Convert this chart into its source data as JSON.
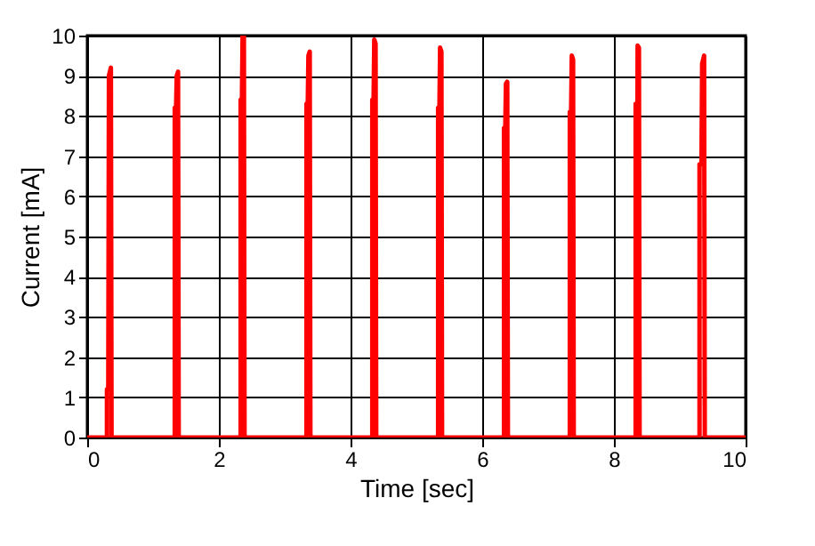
{
  "chart_data": {
    "type": "line",
    "xlabel": "Time [sec]",
    "ylabel": "Current [mA]",
    "xlim": [
      0,
      10
    ],
    "ylim": [
      0,
      10
    ],
    "xticks": [
      0,
      2,
      4,
      6,
      8,
      10
    ],
    "yticks": [
      0,
      1,
      2,
      3,
      4,
      5,
      6,
      7,
      8,
      9,
      10
    ],
    "grid": true,
    "marker": "none",
    "line_style": "solid",
    "series": [
      {
        "color": "#ff0000",
        "x": [
          0,
          0.3,
          0.3,
          0.32,
          0.33,
          0.36,
          0.37,
          1.33,
          1.33,
          1.35,
          1.36,
          1.38,
          1.39,
          2.33,
          2.33,
          2.35,
          2.36,
          2.38,
          2.39,
          3.33,
          3.33,
          3.35,
          3.36,
          3.38,
          3.39,
          4.33,
          4.33,
          4.35,
          4.36,
          4.38,
          4.39,
          5.33,
          5.33,
          5.35,
          5.36,
          5.38,
          5.39,
          6.33,
          6.33,
          6.35,
          6.36,
          6.38,
          6.39,
          7.33,
          7.33,
          7.35,
          7.36,
          7.38,
          7.39,
          8.33,
          8.33,
          8.35,
          8.36,
          8.38,
          8.39,
          9.3,
          9.3,
          9.33,
          9.34,
          9.37,
          9.38,
          10
        ],
        "values": [
          0,
          0,
          1.2,
          1.2,
          9.0,
          9.2,
          0,
          0,
          8.2,
          8.2,
          9.0,
          9.1,
          0,
          0,
          8.4,
          8.4,
          10.0,
          10.0,
          0,
          0,
          8.3,
          8.3,
          9.5,
          9.6,
          0,
          0,
          8.4,
          8.4,
          9.9,
          9.8,
          0,
          0,
          8.2,
          8.2,
          9.7,
          9.6,
          0,
          0,
          7.7,
          7.7,
          8.8,
          8.85,
          0,
          0,
          8.1,
          8.1,
          9.5,
          9.4,
          0,
          0,
          8.3,
          2.3,
          9.75,
          9.7,
          0,
          0,
          6.8,
          6.8,
          9.3,
          9.5,
          0,
          0
        ]
      }
    ]
  }
}
